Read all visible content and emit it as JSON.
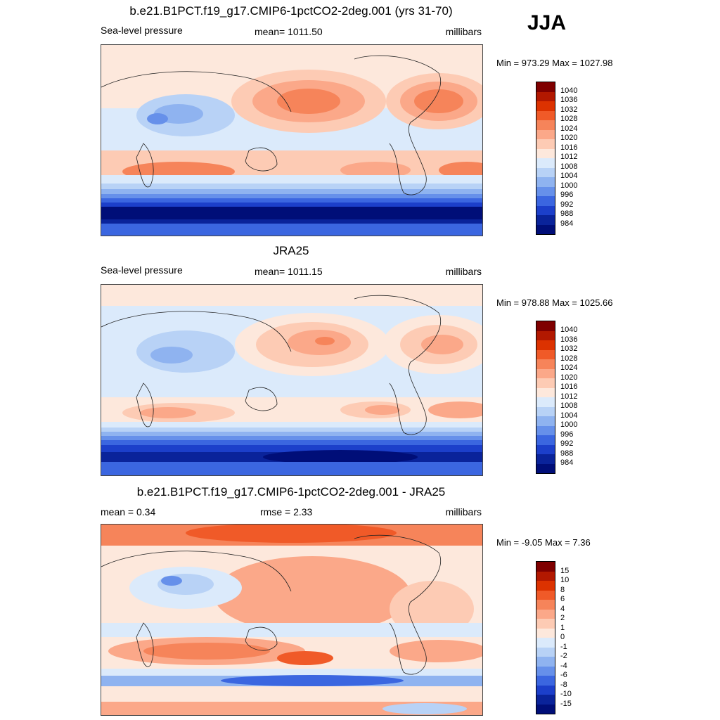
{
  "season": "JJA",
  "panels": [
    {
      "title": "b.e21.B1PCT.f19_g17.CMIP6-1pctCO2-2deg.001 (yrs 31-70)",
      "left_label": "Sea-level pressure",
      "center_label": "mean= 1011.50",
      "right_label": "millibars",
      "minmax": "Min = 973.29 Max = 1027.98",
      "legend_labels": [
        "1040",
        "1036",
        "1032",
        "1028",
        "1024",
        "1020",
        "1016",
        "1012",
        "1008",
        "1004",
        "1000",
        "996",
        "992",
        "988",
        "984"
      ]
    },
    {
      "title": "JRA25",
      "left_label": "Sea-level pressure",
      "center_label": "mean= 1011.15",
      "right_label": "millibars",
      "minmax": "Min = 978.88 Max = 1025.66",
      "legend_labels": [
        "1040",
        "1036",
        "1032",
        "1028",
        "1024",
        "1020",
        "1016",
        "1012",
        "1008",
        "1004",
        "1000",
        "996",
        "992",
        "988",
        "984"
      ]
    },
    {
      "title": "b.e21.B1PCT.f19_g17.CMIP6-1pctCO2-2deg.001 - JRA25",
      "left_label": "mean =   0.34",
      "center_label": "rmse =   2.33",
      "right_label": "millibars",
      "minmax": "Min =  -9.05 Max =   7.36",
      "legend_labels": [
        "15",
        "10",
        "8",
        "6",
        "4",
        "2",
        "1",
        "0",
        "-1",
        "-2",
        "-4",
        "-6",
        "-8",
        "-10",
        "-15"
      ]
    }
  ],
  "colors": {
    "palette": [
      "#7f0000",
      "#b21800",
      "#dc3200",
      "#f05a28",
      "#f6845a",
      "#fba889",
      "#fdcbb4",
      "#fde8dc",
      "#dbeafb",
      "#b8d2f6",
      "#8fb3f0",
      "#6690ea",
      "#3b66e0",
      "#1c3fca",
      "#0a239a",
      "#000e78"
    ]
  }
}
